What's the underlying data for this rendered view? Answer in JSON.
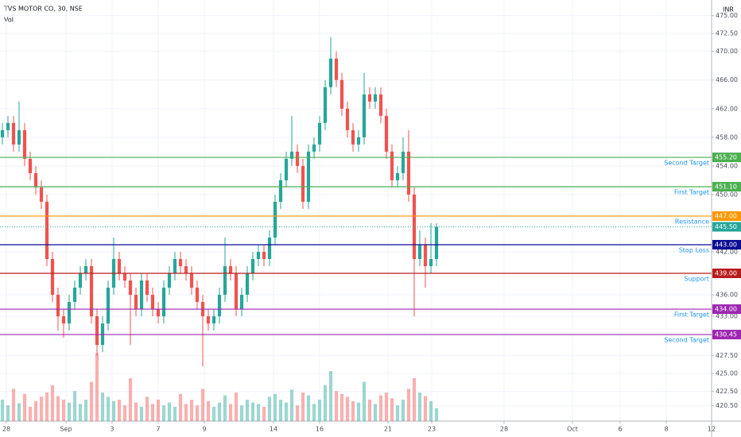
{
  "chart_data": {
    "type": "candlestick",
    "title": "TVS MOTOR CO, 30, NSE",
    "volume_label": "Vol",
    "currency": "INR",
    "up_color": "#26a69a",
    "down_color": "#ef5350",
    "grid": true,
    "x": [
      0,
      1,
      2,
      3,
      4,
      5,
      6,
      7,
      8,
      9,
      10,
      11,
      12,
      13,
      14,
      15,
      16,
      17,
      18,
      19,
      20,
      21,
      22,
      23,
      24,
      25,
      26,
      27,
      28,
      29,
      30,
      31,
      32,
      33,
      34,
      35,
      36,
      37,
      38,
      39,
      40,
      41,
      42,
      43,
      44,
      45,
      46,
      47,
      48,
      49,
      50,
      51,
      52,
      53,
      54,
      55,
      56,
      57,
      58,
      59,
      60,
      61,
      62,
      63,
      64,
      65,
      66,
      67,
      68,
      69,
      70,
      71,
      72,
      73,
      74,
      75,
      76,
      77,
      78
    ],
    "ohlc": [
      [
        458,
        460,
        457,
        459
      ],
      [
        459,
        461,
        458,
        460
      ],
      [
        460,
        461,
        456,
        457
      ],
      [
        457,
        463,
        456,
        459
      ],
      [
        459,
        460,
        454,
        455
      ],
      [
        455,
        456,
        452,
        453
      ],
      [
        453,
        454,
        450,
        451
      ],
      [
        451,
        452,
        448,
        449
      ],
      [
        449,
        450,
        440,
        441
      ],
      [
        441,
        442,
        435,
        436
      ],
      [
        436,
        437,
        431,
        433
      ],
      [
        433,
        434,
        430,
        432
      ],
      [
        432,
        436,
        431,
        435
      ],
      [
        435,
        438,
        434,
        437
      ],
      [
        437,
        440,
        436,
        439
      ],
      [
        439,
        441,
        438,
        440
      ],
      [
        440,
        441,
        432,
        433
      ],
      [
        433,
        434,
        427.5,
        429
      ],
      [
        429,
        433,
        428,
        432
      ],
      [
        432,
        438,
        431,
        437
      ],
      [
        437,
        444,
        436,
        441
      ],
      [
        441,
        442,
        438,
        439
      ],
      [
        439,
        440,
        437,
        438
      ],
      [
        438,
        439,
        429,
        436
      ],
      [
        436,
        437,
        433,
        434
      ],
      [
        434,
        439,
        433,
        438
      ],
      [
        438,
        439,
        435,
        436
      ],
      [
        436,
        437,
        433,
        434
      ],
      [
        434,
        435,
        432,
        433
      ],
      [
        433,
        438,
        432,
        437
      ],
      [
        437,
        440,
        436,
        439
      ],
      [
        439,
        442,
        438,
        441
      ],
      [
        441,
        442,
        439,
        440
      ],
      [
        440,
        441,
        438,
        439
      ],
      [
        439,
        440,
        436,
        437
      ],
      [
        437,
        438,
        434,
        435
      ],
      [
        435,
        436,
        426,
        433
      ],
      [
        433,
        434,
        431,
        432
      ],
      [
        432,
        434,
        431,
        433
      ],
      [
        433,
        437,
        432,
        436
      ],
      [
        436,
        444,
        435,
        440
      ],
      [
        440,
        441,
        438,
        439
      ],
      [
        439,
        440,
        433,
        434
      ],
      [
        434,
        437,
        433,
        436
      ],
      [
        436,
        440,
        435,
        439
      ],
      [
        439,
        442,
        438,
        441
      ],
      [
        441,
        443,
        440,
        442
      ],
      [
        442,
        443,
        440,
        441
      ],
      [
        441,
        445,
        440,
        444
      ],
      [
        444,
        450,
        443,
        449
      ],
      [
        449,
        453,
        448,
        452
      ],
      [
        452,
        456,
        451,
        455
      ],
      [
        455,
        461,
        454,
        456
      ],
      [
        456,
        457,
        453,
        454
      ],
      [
        454,
        455,
        448,
        449
      ],
      [
        449,
        457,
        448,
        456
      ],
      [
        456,
        458,
        455,
        457
      ],
      [
        457,
        461,
        456,
        460
      ],
      [
        460,
        466,
        459,
        465
      ],
      [
        465,
        472,
        464,
        469
      ],
      [
        469,
        470,
        465,
        466
      ],
      [
        466,
        467,
        461,
        462
      ],
      [
        462,
        463,
        458,
        459
      ],
      [
        459,
        460,
        456,
        457
      ],
      [
        457,
        459,
        456,
        458
      ],
      [
        458,
        467,
        457,
        464
      ],
      [
        464,
        465,
        462,
        463
      ],
      [
        463,
        465,
        462,
        464
      ],
      [
        464,
        465,
        460,
        461
      ],
      [
        461,
        462,
        455,
        456
      ],
      [
        456,
        457,
        451,
        452
      ],
      [
        452,
        454,
        451,
        453
      ],
      [
        453,
        458,
        452,
        456
      ],
      [
        456,
        459,
        449,
        450
      ],
      [
        450,
        451,
        433,
        441
      ],
      [
        441,
        445,
        440,
        443
      ],
      [
        443,
        444,
        437,
        440
      ],
      [
        440,
        446,
        439,
        441
      ],
      [
        441,
        446,
        440,
        445.5
      ]
    ],
    "volume": [
      30,
      22,
      45,
      25,
      38,
      20,
      28,
      34,
      40,
      50,
      35,
      30,
      26,
      42,
      24,
      30,
      55,
      95,
      40,
      34,
      28,
      30,
      22,
      60,
      26,
      20,
      34,
      24,
      30,
      22,
      26,
      20,
      38,
      24,
      30,
      22,
      45,
      28,
      20,
      26,
      36,
      24,
      40,
      22,
      30,
      26,
      24,
      20,
      34,
      38,
      30,
      26,
      44,
      22,
      40,
      36,
      24,
      30,
      50,
      70,
      42,
      38,
      34,
      28,
      26,
      55,
      30,
      24,
      36,
      40,
      32,
      22,
      30,
      45,
      60,
      40,
      35,
      28,
      18
    ],
    "volume_max": 100,
    "xlim": [
      -0.43,
      127.43
    ],
    "xticks": [
      {
        "value": 0.71,
        "label": "28"
      },
      {
        "value": 11.43,
        "label": "Sep"
      },
      {
        "value": 19.71,
        "label": "3"
      },
      {
        "value": 28,
        "label": "7"
      },
      {
        "value": 36.29,
        "label": "9"
      },
      {
        "value": 48.71,
        "label": "14"
      },
      {
        "value": 57,
        "label": "16"
      },
      {
        "value": 69.29,
        "label": "21"
      },
      {
        "value": 77.14,
        "label": "23"
      },
      {
        "value": 90.14,
        "label": "28"
      },
      {
        "value": 102.43,
        "label": "Oct"
      },
      {
        "value": 111,
        "label": "6"
      },
      {
        "value": 119.29,
        "label": "8"
      },
      {
        "value": 127.43,
        "label": "12"
      }
    ],
    "ylim": [
      418.36,
      477.18
    ],
    "yticks": [
      {
        "value": 475,
        "label": "475.00"
      },
      {
        "value": 472.5,
        "label": "472.50"
      },
      {
        "value": 470,
        "label": "470.00"
      },
      {
        "value": 466,
        "label": "466.00"
      },
      {
        "value": 462,
        "label": "462.00"
      },
      {
        "value": 458,
        "label": "458.00"
      },
      {
        "value": 454,
        "label": "454.00"
      },
      {
        "value": 450,
        "label": "450.00"
      },
      {
        "value": 442,
        "label": "442.00"
      },
      {
        "value": 436,
        "label": "436.00"
      },
      {
        "value": 433,
        "label": "433.00"
      },
      {
        "value": 427.5,
        "label": "427.50"
      },
      {
        "value": 425,
        "label": "425.00"
      },
      {
        "value": 422.5,
        "label": "422.50"
      },
      {
        "value": 420.5,
        "label": "420.50"
      }
    ],
    "levels": [
      {
        "name": "Second Target",
        "value": 455.2,
        "value_label": "455.20",
        "color": "#4caf50"
      },
      {
        "name": "First Target",
        "value": 451.1,
        "value_label": "451.10",
        "color": "#4caf50"
      },
      {
        "name": "Resistance",
        "value": 447,
        "value_label": "447.00",
        "color": "#ff9800"
      },
      {
        "name": "Stop Loss",
        "value": 443,
        "value_label": "443.00",
        "color": "#0c0c94"
      },
      {
        "name": "Support",
        "value": 439,
        "value_label": "439.00",
        "color": "#b71c1c"
      },
      {
        "name": "First Target",
        "value": 434,
        "value_label": "434.00",
        "color": "#9c27b0"
      },
      {
        "name": "Second Target",
        "value": 430.45,
        "value_label": "430.45",
        "color": "#9c27b0"
      }
    ],
    "level_text_color": "#2196f3",
    "current_price": 445.5,
    "current_price_label": "445.50"
  }
}
